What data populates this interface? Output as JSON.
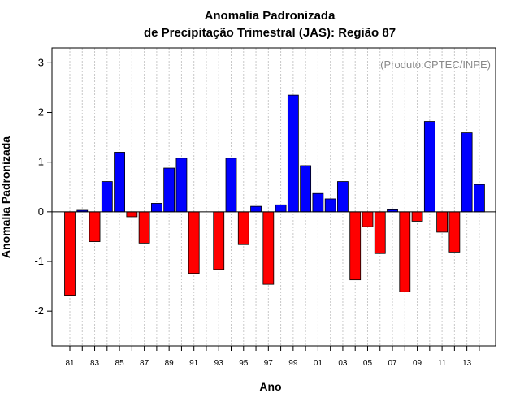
{
  "chart_data": {
    "type": "bar",
    "title_line1": "Anomalia Padronizada",
    "title_line2": "de Precipitação Trimestral (JAS): Região 87",
    "xlabel": "Ano",
    "ylabel": "Anomalia Padronizada",
    "credit": "(Produto:CPTEC/INPE)",
    "ylim": [
      -2.7,
      3.3
    ],
    "yticks": [
      -2,
      -1,
      0,
      1,
      2,
      3
    ],
    "ytick_labels": [
      "-2",
      "-1",
      "0",
      "1",
      "2",
      "3"
    ],
    "grid": "vertical dotted",
    "positive_color": "#0000ff",
    "negative_color": "#ff0000",
    "years": [
      1981,
      1982,
      1983,
      1984,
      1985,
      1986,
      1987,
      1988,
      1989,
      1990,
      1991,
      1992,
      1993,
      1994,
      1995,
      1996,
      1997,
      1998,
      1999,
      2000,
      2001,
      2002,
      2003,
      2004,
      2005,
      2006,
      2007,
      2008,
      2009,
      2010,
      2011,
      2012,
      2013,
      2014
    ],
    "values": [
      -1.68,
      0.03,
      -0.6,
      0.61,
      1.2,
      -0.1,
      -0.63,
      0.17,
      0.88,
      1.08,
      -1.24,
      0.0,
      -1.16,
      1.08,
      -0.66,
      0.11,
      -1.46,
      0.14,
      2.35,
      0.93,
      0.37,
      0.26,
      0.61,
      -1.37,
      -0.3,
      -0.84,
      0.04,
      -1.61,
      -0.19,
      1.82,
      -0.41,
      -0.81,
      1.59,
      0.55
    ],
    "xtick_labels": [
      "81",
      "83",
      "85",
      "87",
      "89",
      "91",
      "93",
      "95",
      "97",
      "99",
      "01",
      "03",
      "05",
      "07",
      "09",
      "11",
      "13"
    ]
  }
}
